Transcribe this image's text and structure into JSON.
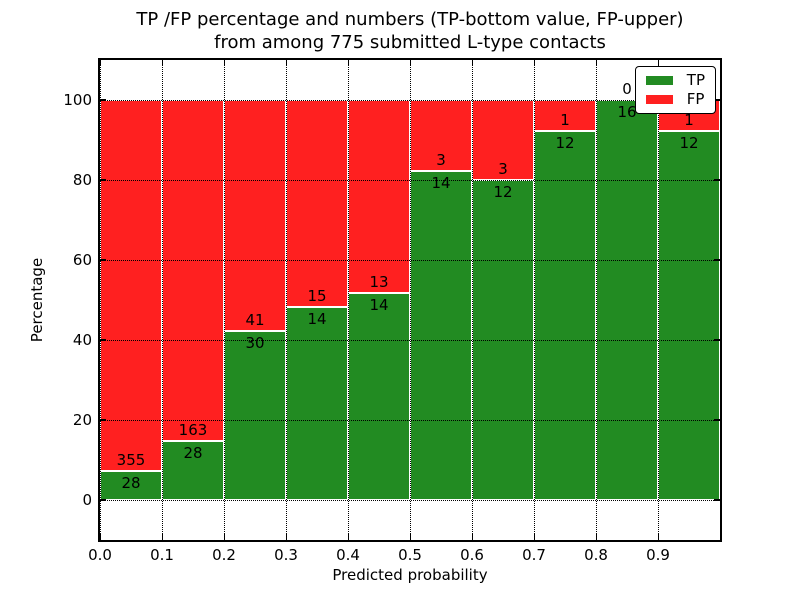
{
  "chart_data": {
    "type": "bar",
    "stacked": true,
    "normalized_to_percent": true,
    "title_line1": "TP /FP percentage and numbers (TP-bottom value, FP-upper)",
    "title_line2": "from among 775 submitted L-type contacts",
    "xlabel": "Predicted probability",
    "ylabel": "Percentage",
    "xlim": [
      0.0,
      1.0
    ],
    "ylim": [
      -10,
      110
    ],
    "bin_width": 0.1,
    "categories": [
      "0.0-0.1",
      "0.1-0.2",
      "0.2-0.3",
      "0.3-0.4",
      "0.4-0.5",
      "0.5-0.6",
      "0.6-0.7",
      "0.7-0.8",
      "0.8-0.9",
      "0.9-1.0"
    ],
    "x_tick_labels": [
      "0.0",
      "0.1",
      "0.2",
      "0.3",
      "0.4",
      "0.5",
      "0.6",
      "0.7",
      "0.8",
      "0.9"
    ],
    "y_ticks": [
      0,
      20,
      40,
      60,
      80,
      100
    ],
    "grid": "dotted",
    "series": [
      {
        "name": "TP",
        "color": "#228B22",
        "counts": [
          28,
          28,
          30,
          14,
          14,
          14,
          12,
          12,
          16,
          12
        ]
      },
      {
        "name": "FP",
        "color": "#FF2020",
        "counts": [
          355,
          163,
          41,
          15,
          13,
          3,
          3,
          1,
          0,
          1
        ]
      }
    ],
    "tp_percent_of_bin": [
      7.3,
      14.7,
      42.3,
      48.3,
      51.9,
      82.4,
      80.0,
      92.3,
      100.0,
      92.3
    ],
    "legend": {
      "position": "upper right",
      "labels": [
        "TP",
        "FP"
      ]
    }
  },
  "colors": {
    "tp_green": "#228B22",
    "fp_red": "#FF2020",
    "background": "#FFFFFF",
    "text": "#000000"
  }
}
